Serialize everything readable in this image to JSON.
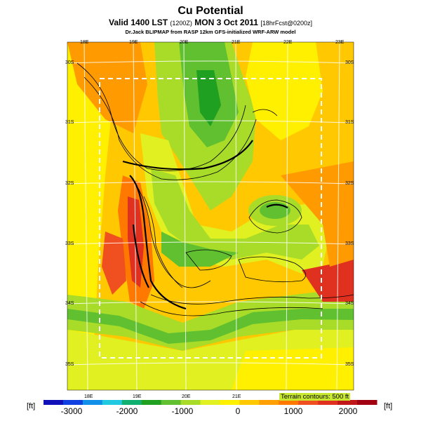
{
  "title": "Cu Potential",
  "subtitle_main": "Valid 1400 LST",
  "subtitle_small1": "(1200Z)",
  "subtitle_day": "MON 3 Oct 2011",
  "subtitle_small2": "[18hrFcst@0200z]",
  "credit": "Dr.Jack BLIPMAP from RASP 12km GFS-initialized WRF-ARW model",
  "top_lon_labels": [
    "18E",
    "19E",
    "20E",
    "21E",
    "22E",
    "23E"
  ],
  "bottom_lon_labels": [
    "18E",
    "19E",
    "20E",
    "21E"
  ],
  "left_lat_labels": [
    "30S",
    "31S",
    "32S",
    "33S",
    "34S",
    "35S"
  ],
  "right_lat_labels": [
    "30S",
    "31S",
    "32S",
    "33S",
    "34S",
    "35S"
  ],
  "terrain_note": "Terrain contours: 500 ft",
  "colorbar": {
    "unit": "[ft]",
    "labels": [
      "-3000",
      "-2000",
      "-1000",
      "0",
      "1000",
      "2000"
    ],
    "colors": [
      "#1010b8",
      "#1040e0",
      "#1090e8",
      "#20c8e0",
      "#10b070",
      "#20a020",
      "#60c030",
      "#a8dc28",
      "#e0f020",
      "#fff000",
      "#ffc800",
      "#ffa000",
      "#ff7800",
      "#f05020",
      "#e03020",
      "#c01818",
      "#a00010"
    ]
  }
}
